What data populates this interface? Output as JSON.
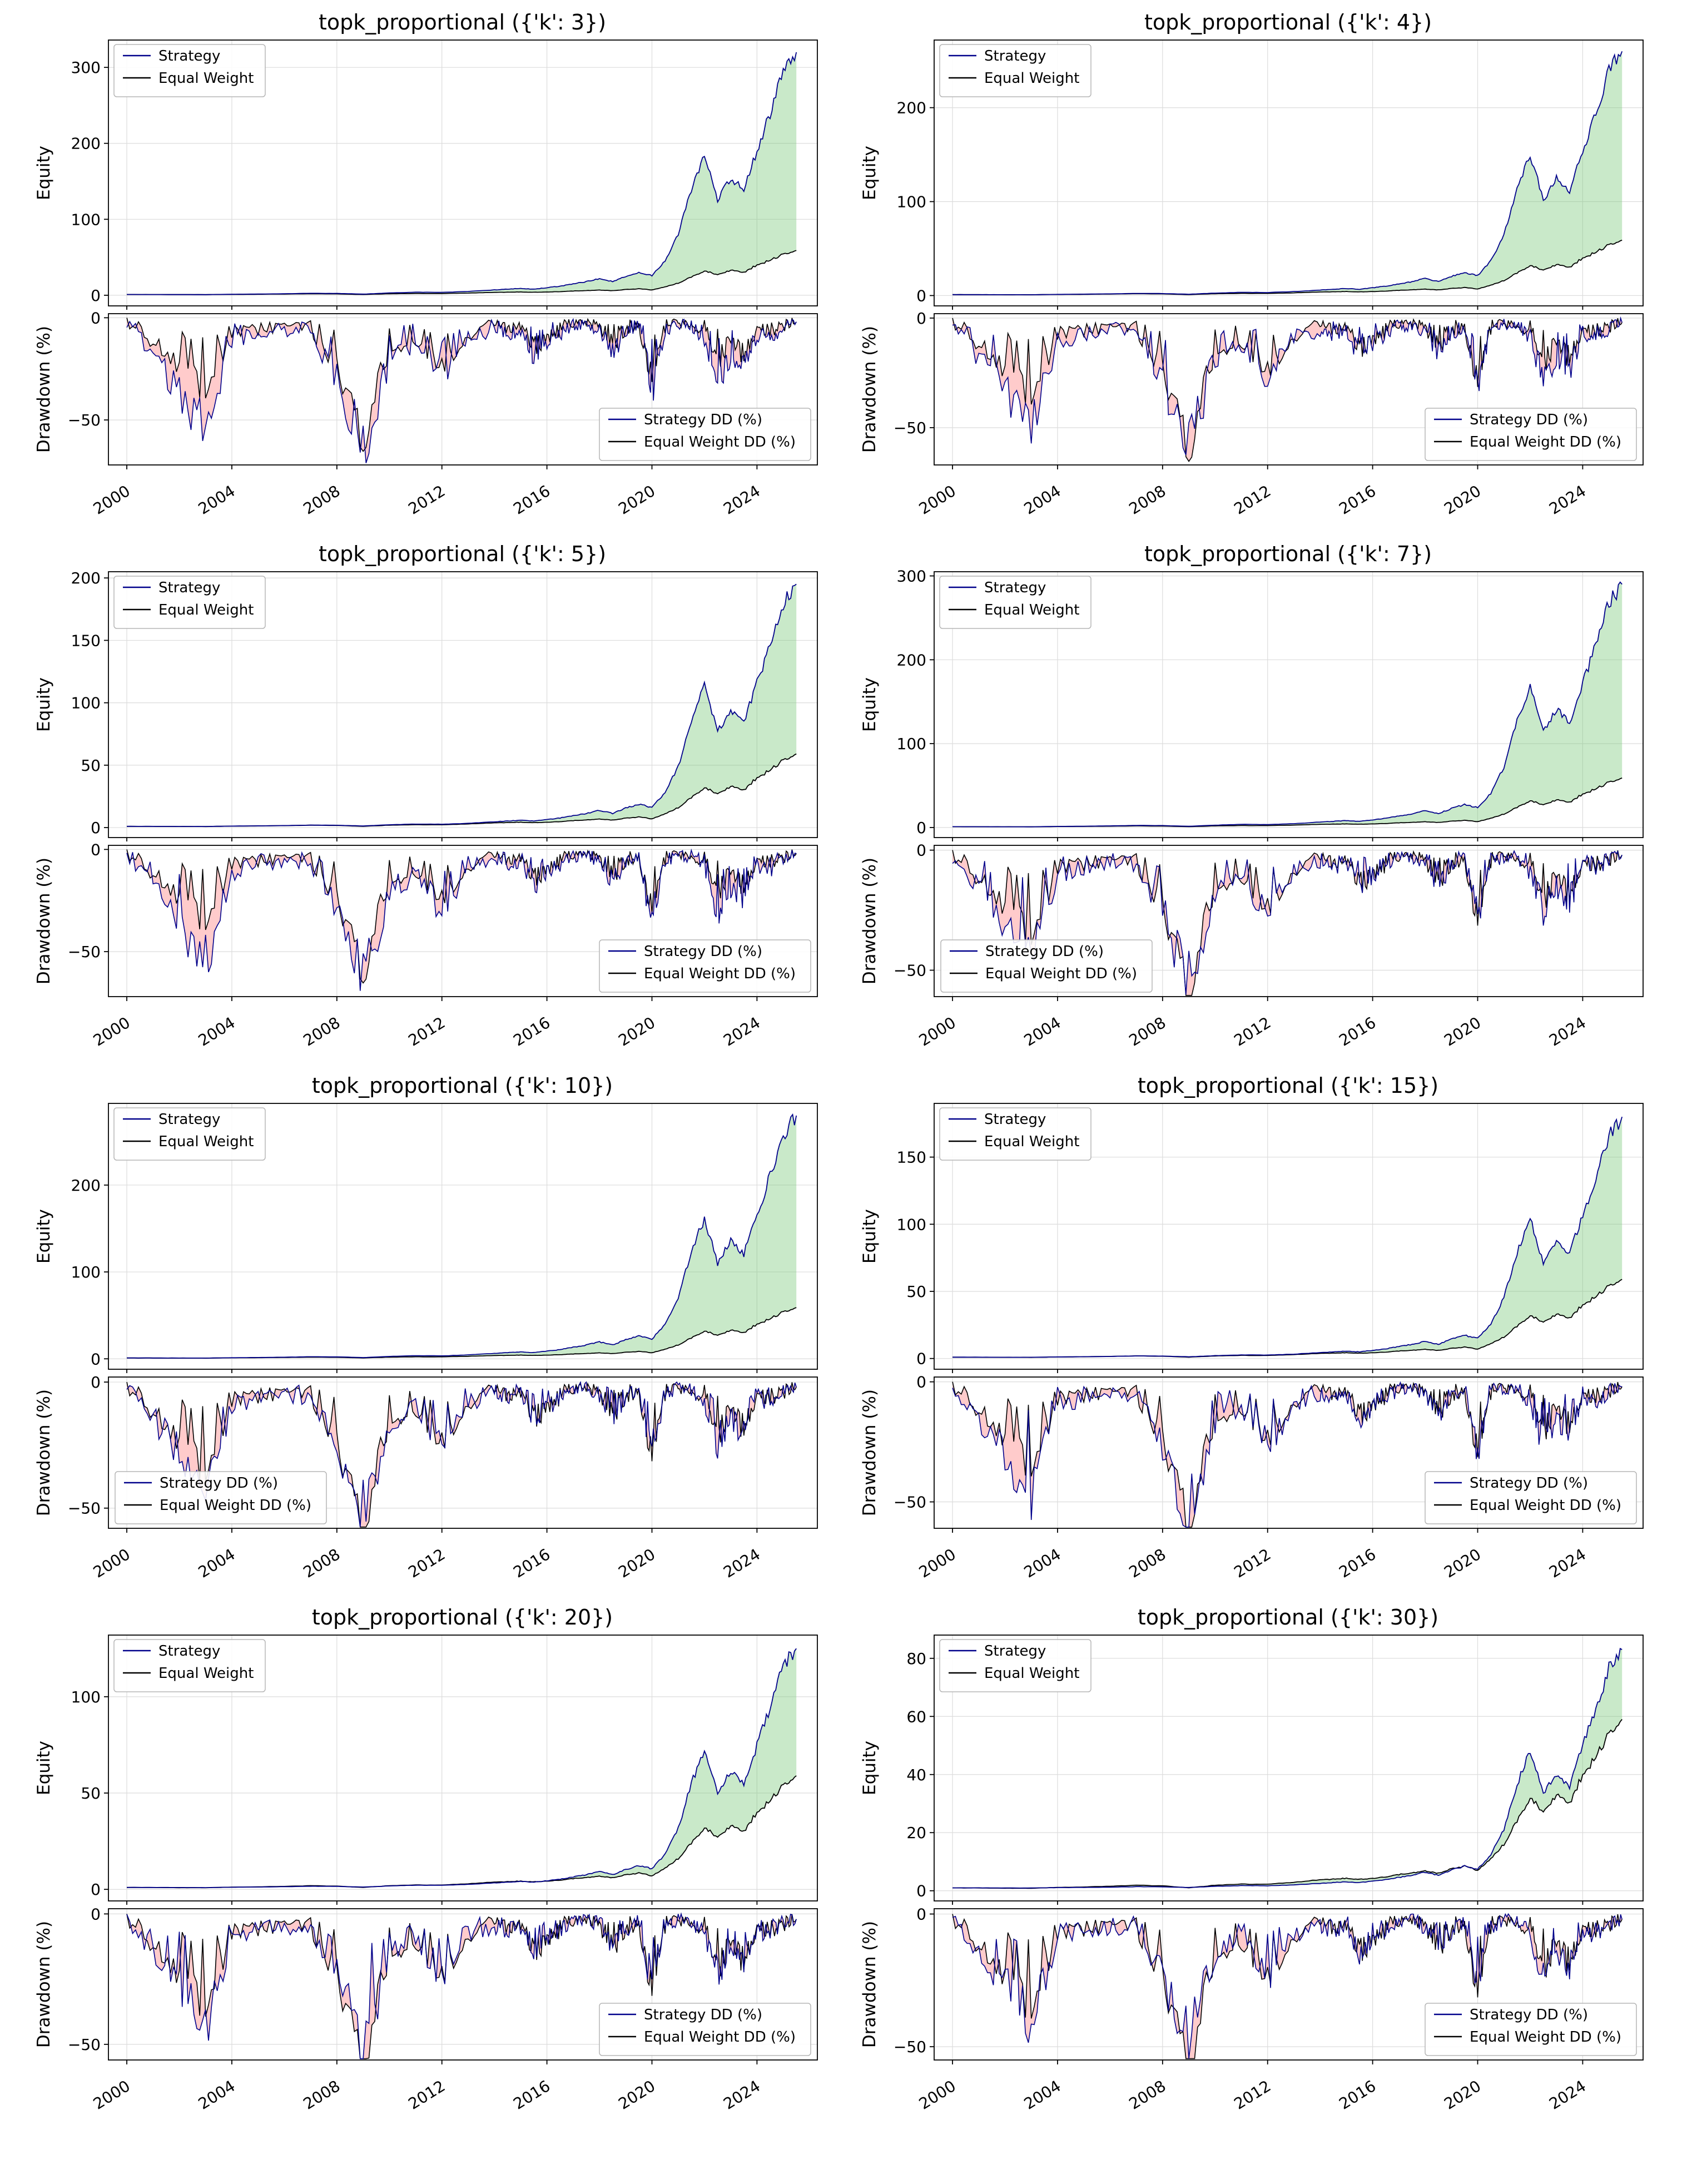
{
  "style": {
    "background": "#ffffff",
    "strategy_color": "#00008b",
    "equal_weight_color": "#000000",
    "equity_fill": "rgba(120,200,120,0.40)",
    "dd_fill": "rgba(255,140,140,0.45)",
    "grid_color": "#dcdcdc",
    "spine_color": "#000000",
    "legend_border": "#b5b5b5"
  },
  "chart_data": {
    "type": "line",
    "layout": {
      "rows": 4,
      "cols": 2
    },
    "xlim": [
      1999.3,
      2026.3
    ],
    "xticks": [
      2000,
      2004,
      2008,
      2012,
      2016,
      2020,
      2024
    ],
    "equity_ylabel": "Equity",
    "dd_ylabel": "Drawdown (%)",
    "equity_legend": [
      "Strategy",
      "Equal Weight"
    ],
    "dd_legend": [
      "Strategy DD (%)",
      "Equal Weight DD (%)"
    ],
    "x": [
      2000,
      2001,
      2002,
      2003,
      2004,
      2005,
      2006,
      2007,
      2008,
      2009,
      2010,
      2011,
      2012,
      2013,
      2014,
      2014.5,
      2015,
      2015.5,
      2016,
      2016.5,
      2017,
      2017.5,
      2018,
      2018.5,
      2019,
      2019.5,
      2020,
      2020.5,
      2021,
      2021.5,
      2022,
      2022.5,
      2023,
      2023.5,
      2024,
      2024.5,
      2025,
      2025.5
    ],
    "equal_weight_equity": [
      1.0,
      0.95,
      0.88,
      0.85,
      1.15,
      1.3,
      1.55,
      1.9,
      1.7,
      1.0,
      1.9,
      2.3,
      2.2,
      2.9,
      3.8,
      4.0,
      4.3,
      3.9,
      4.3,
      4.8,
      5.6,
      6.2,
      6.8,
      6.0,
      7.5,
      8.5,
      7.0,
      11,
      16,
      24,
      32,
      27,
      33,
      30,
      40,
      46,
      54,
      59
    ],
    "equal_weight_dd": [
      -2,
      -12,
      -25,
      -35,
      -8,
      -6,
      -4,
      -5,
      -25,
      -55,
      -15,
      -10,
      -22,
      -8,
      -4,
      -5,
      -4,
      -14,
      -10,
      -6,
      -3,
      -2,
      -4,
      -13,
      -6,
      -3,
      -32,
      -5,
      -2,
      -3,
      -6,
      -20,
      -12,
      -18,
      -5,
      -8,
      -4,
      -2
    ],
    "panels": [
      {
        "title": "topk_proportional ({'k': 3})",
        "equity_yticks": [
          0,
          100,
          200,
          300
        ],
        "equity_ylim": [
          -14,
          336
        ],
        "dd_yticks": [
          0,
          -50
        ],
        "dd_ylim": [
          -72,
          2
        ],
        "dd_legend_loc": "right",
        "strategy_equity": [
          1.0,
          0.95,
          0.85,
          0.8,
          1.3,
          1.6,
          2.0,
          2.6,
          2.4,
          1.5,
          3.0,
          4.0,
          3.8,
          5.0,
          7.0,
          8.0,
          9.0,
          8.0,
          10,
          12,
          15,
          18,
          22,
          18,
          25,
          30,
          26,
          45,
          80,
          140,
          185,
          125,
          155,
          138,
          190,
          240,
          295,
          320
        ],
        "strategy_dd": [
          -3,
          -18,
          -35,
          -55,
          -12,
          -8,
          -6,
          -7,
          -30,
          -65,
          -20,
          -12,
          -30,
          -10,
          -6,
          -8,
          -6,
          -18,
          -12,
          -8,
          -4,
          -3,
          -6,
          -16,
          -8,
          -4,
          -35,
          -6,
          -3,
          -4,
          -10,
          -30,
          -18,
          -25,
          -8,
          -10,
          -5,
          -2
        ]
      },
      {
        "title": "topk_proportional ({'k': 4})",
        "equity_yticks": [
          0,
          100,
          200
        ],
        "equity_ylim": [
          -11,
          272
        ],
        "dd_yticks": [
          0,
          -50
        ],
        "dd_ylim": [
          -67,
          2
        ],
        "dd_legend_loc": "right",
        "strategy_equity": [
          1.0,
          0.96,
          0.88,
          0.84,
          1.24,
          1.49,
          1.81,
          2.3,
          2.14,
          1.41,
          2.62,
          3.44,
          3.27,
          4.25,
          5.87,
          6.68,
          7.5,
          6.68,
          8.31,
          9.93,
          12.4,
          14.8,
          18.1,
          14.8,
          20.5,
          24.5,
          21.3,
          36.7,
          65.1,
          113.9,
          150.4,
          101.7,
          126.0,
          112.2,
          154.5,
          195.1,
          239.7,
          260
        ],
        "strategy_dd": [
          -3,
          -17,
          -32,
          -51,
          -11,
          -7,
          -6,
          -6,
          -28,
          -60,
          -18,
          -11,
          -28,
          -9,
          -6,
          -7,
          -6,
          -17,
          -11,
          -7,
          -4,
          -3,
          -6,
          -15,
          -7,
          -4,
          -32,
          -6,
          -3,
          -4,
          -9,
          -28,
          -17,
          -23,
          -7,
          -9,
          -5,
          -2
        ]
      },
      {
        "title": "topk_proportional ({'k': 5})",
        "equity_yticks": [
          0,
          50,
          100,
          150,
          200
        ],
        "equity_ylim": [
          -8,
          205
        ],
        "dd_yticks": [
          0,
          -50
        ],
        "dd_ylim": [
          -72,
          2
        ],
        "dd_legend_loc": "right",
        "strategy_equity": [
          1.0,
          0.97,
          0.91,
          0.88,
          1.18,
          1.36,
          1.61,
          1.97,
          1.85,
          1.3,
          2.22,
          2.82,
          2.7,
          3.43,
          4.65,
          5.26,
          5.86,
          5.26,
          6.47,
          7.69,
          9.51,
          11.3,
          13.8,
          11.3,
          15.6,
          18.6,
          16.2,
          27.8,
          49.0,
          85.5,
          112.9,
          76.4,
          94.6,
          84.3,
          115.9,
          146.3,
          179.8,
          195
        ],
        "strategy_dd": [
          -3,
          -18,
          -35,
          -55,
          -12,
          -8,
          -6,
          -7,
          -30,
          -65,
          -20,
          -12,
          -30,
          -10,
          -6,
          -8,
          -6,
          -18,
          -12,
          -8,
          -4,
          -3,
          -6,
          -16,
          -8,
          -4,
          -35,
          -6,
          -3,
          -4,
          -10,
          -30,
          -18,
          -25,
          -8,
          -10,
          -5,
          -2
        ]
      },
      {
        "title": "topk_proportional ({'k': 7})",
        "equity_yticks": [
          0,
          100,
          200,
          300
        ],
        "equity_ylim": [
          -12,
          305
        ],
        "dd_yticks": [
          0,
          -50
        ],
        "dd_ylim": [
          -61,
          2
        ],
        "dd_legend_loc": "left",
        "strategy_equity": [
          1.0,
          0.95,
          0.86,
          0.82,
          1.27,
          1.54,
          1.91,
          2.45,
          2.27,
          1.45,
          2.81,
          3.72,
          3.54,
          4.62,
          6.44,
          7.34,
          8.25,
          7.34,
          9.15,
          10.97,
          13.7,
          16.4,
          20.0,
          16.4,
          22.7,
          27.3,
          23.7,
          40.9,
          72.6,
          126.9,
          167.7,
          113.3,
          140.5,
          125.1,
          172.2,
          217.5,
          267.4,
          290
        ],
        "strategy_dd": [
          -3,
          -15,
          -30,
          -47,
          -10,
          -7,
          -5,
          -6,
          -26,
          -55,
          -17,
          -10,
          -26,
          -9,
          -5,
          -7,
          -5,
          -15,
          -10,
          -7,
          -3,
          -3,
          -5,
          -14,
          -7,
          -3,
          -30,
          -5,
          -3,
          -3,
          -9,
          -26,
          -15,
          -21,
          -7,
          -9,
          -4,
          -2
        ]
      },
      {
        "title": "topk_proportional ({'k': 10})",
        "equity_yticks": [
          0,
          100,
          200
        ],
        "equity_ylim": [
          -12,
          294
        ],
        "dd_yticks": [
          0,
          -50
        ],
        "dd_ylim": [
          -58,
          2
        ],
        "dd_legend_loc": "left",
        "strategy_equity": [
          1.0,
          0.96,
          0.87,
          0.83,
          1.26,
          1.53,
          1.88,
          2.4,
          2.23,
          1.44,
          2.75,
          3.63,
          3.45,
          4.5,
          6.25,
          7.13,
          8.0,
          7.13,
          8.88,
          10.6,
          13.3,
          15.9,
          19.4,
          15.9,
          22.0,
          26.4,
          22.9,
          39.5,
          70.1,
          122.6,
          162.0,
          109.5,
          135.8,
          120.9,
          166.4,
          210.1,
          258.3,
          280
        ],
        "strategy_dd": [
          -2,
          -14,
          -28,
          -44,
          -10,
          -6,
          -5,
          -6,
          -24,
          -52,
          -16,
          -10,
          -24,
          -8,
          -5,
          -6,
          -5,
          -14,
          -10,
          -6,
          -3,
          -2,
          -5,
          -13,
          -6,
          -3,
          -28,
          -5,
          -2,
          -3,
          -8,
          -24,
          -14,
          -20,
          -6,
          -8,
          -4,
          -2
        ]
      },
      {
        "title": "topk_proportional ({'k': 15})",
        "equity_yticks": [
          0,
          50,
          100,
          150
        ],
        "equity_ylim": [
          -8,
          190
        ],
        "dd_yticks": [
          0,
          -50
        ],
        "dd_ylim": [
          -61,
          2
        ],
        "dd_legend_loc": "right",
        "strategy_equity": [
          1.0,
          0.97,
          0.92,
          0.89,
          1.17,
          1.34,
          1.56,
          1.9,
          1.79,
          1.28,
          2.12,
          2.68,
          2.57,
          3.24,
          4.37,
          4.93,
          5.49,
          4.93,
          6.05,
          7.17,
          8.85,
          10.5,
          12.8,
          10.5,
          14.5,
          17.3,
          15.0,
          25.7,
          45.3,
          79.0,
          104.2,
          70.6,
          87.4,
          77.9,
          107.0,
          135.1,
          165.9,
          180
        ],
        "strategy_dd": [
          -3,
          -15,
          -30,
          -47,
          -10,
          -7,
          -5,
          -6,
          -26,
          -55,
          -17,
          -10,
          -26,
          -9,
          -5,
          -7,
          -5,
          -15,
          -10,
          -7,
          -3,
          -3,
          -5,
          -14,
          -7,
          -3,
          -30,
          -5,
          -3,
          -3,
          -9,
          -26,
          -15,
          -21,
          -7,
          -9,
          -4,
          -2
        ]
      },
      {
        "title": "topk_proportional ({'k': 20})",
        "equity_yticks": [
          0,
          50,
          100
        ],
        "equity_ylim": [
          -6,
          132
        ],
        "dd_yticks": [
          0,
          -50
        ],
        "dd_ylim": [
          -56,
          2
        ],
        "dd_legend_loc": "right",
        "strategy_equity": [
          1.0,
          0.98,
          0.94,
          0.92,
          1.12,
          1.23,
          1.39,
          1.62,
          1.54,
          1.19,
          1.78,
          2.17,
          2.09,
          2.56,
          3.33,
          3.72,
          4.11,
          3.72,
          4.5,
          5.28,
          6.45,
          7.61,
          9.17,
          7.61,
          10.3,
          12.3,
          10.7,
          18.1,
          31.7,
          55.1,
          72.6,
          49.2,
          60.9,
          54.3,
          74.5,
          94.0,
          115.3,
          125
        ],
        "strategy_dd": [
          -2,
          -14,
          -27,
          -43,
          -9,
          -6,
          -5,
          -5,
          -23,
          -51,
          -16,
          -9,
          -23,
          -8,
          -5,
          -6,
          -5,
          -14,
          -9,
          -6,
          -3,
          -2,
          -5,
          -12,
          -6,
          -3,
          -27,
          -5,
          -2,
          -3,
          -8,
          -23,
          -14,
          -20,
          -6,
          -8,
          -4,
          -2
        ]
      },
      {
        "title": "topk_proportional ({'k': 30})",
        "equity_yticks": [
          0,
          20,
          40,
          60,
          80
        ],
        "equity_ylim": [
          -3.5,
          88
        ],
        "dd_yticks": [
          0,
          -50
        ],
        "dd_ylim": [
          -55,
          2
        ],
        "dd_legend_loc": "right",
        "strategy_equity": [
          1.0,
          0.99,
          0.96,
          0.95,
          1.08,
          1.15,
          1.26,
          1.41,
          1.36,
          1.13,
          1.51,
          1.77,
          1.72,
          2.03,
          2.54,
          2.8,
          3.06,
          2.8,
          3.31,
          3.83,
          4.6,
          5.37,
          6.4,
          5.37,
          7.17,
          8.45,
          7.43,
          12.3,
          21.3,
          36.7,
          48.3,
          32.9,
          40.6,
          36.2,
          49.6,
          62.4,
          76.6,
          83
        ],
        "strategy_dd": [
          -2,
          -14,
          -26,
          -41,
          -9,
          -6,
          -5,
          -5,
          -23,
          -49,
          -15,
          -9,
          -23,
          -8,
          -5,
          -6,
          -5,
          -14,
          -9,
          -6,
          -3,
          -2,
          -5,
          -12,
          -6,
          -3,
          -26,
          -5,
          -2,
          -3,
          -8,
          -23,
          -14,
          -19,
          -6,
          -8,
          -4,
          -2
        ]
      }
    ]
  }
}
